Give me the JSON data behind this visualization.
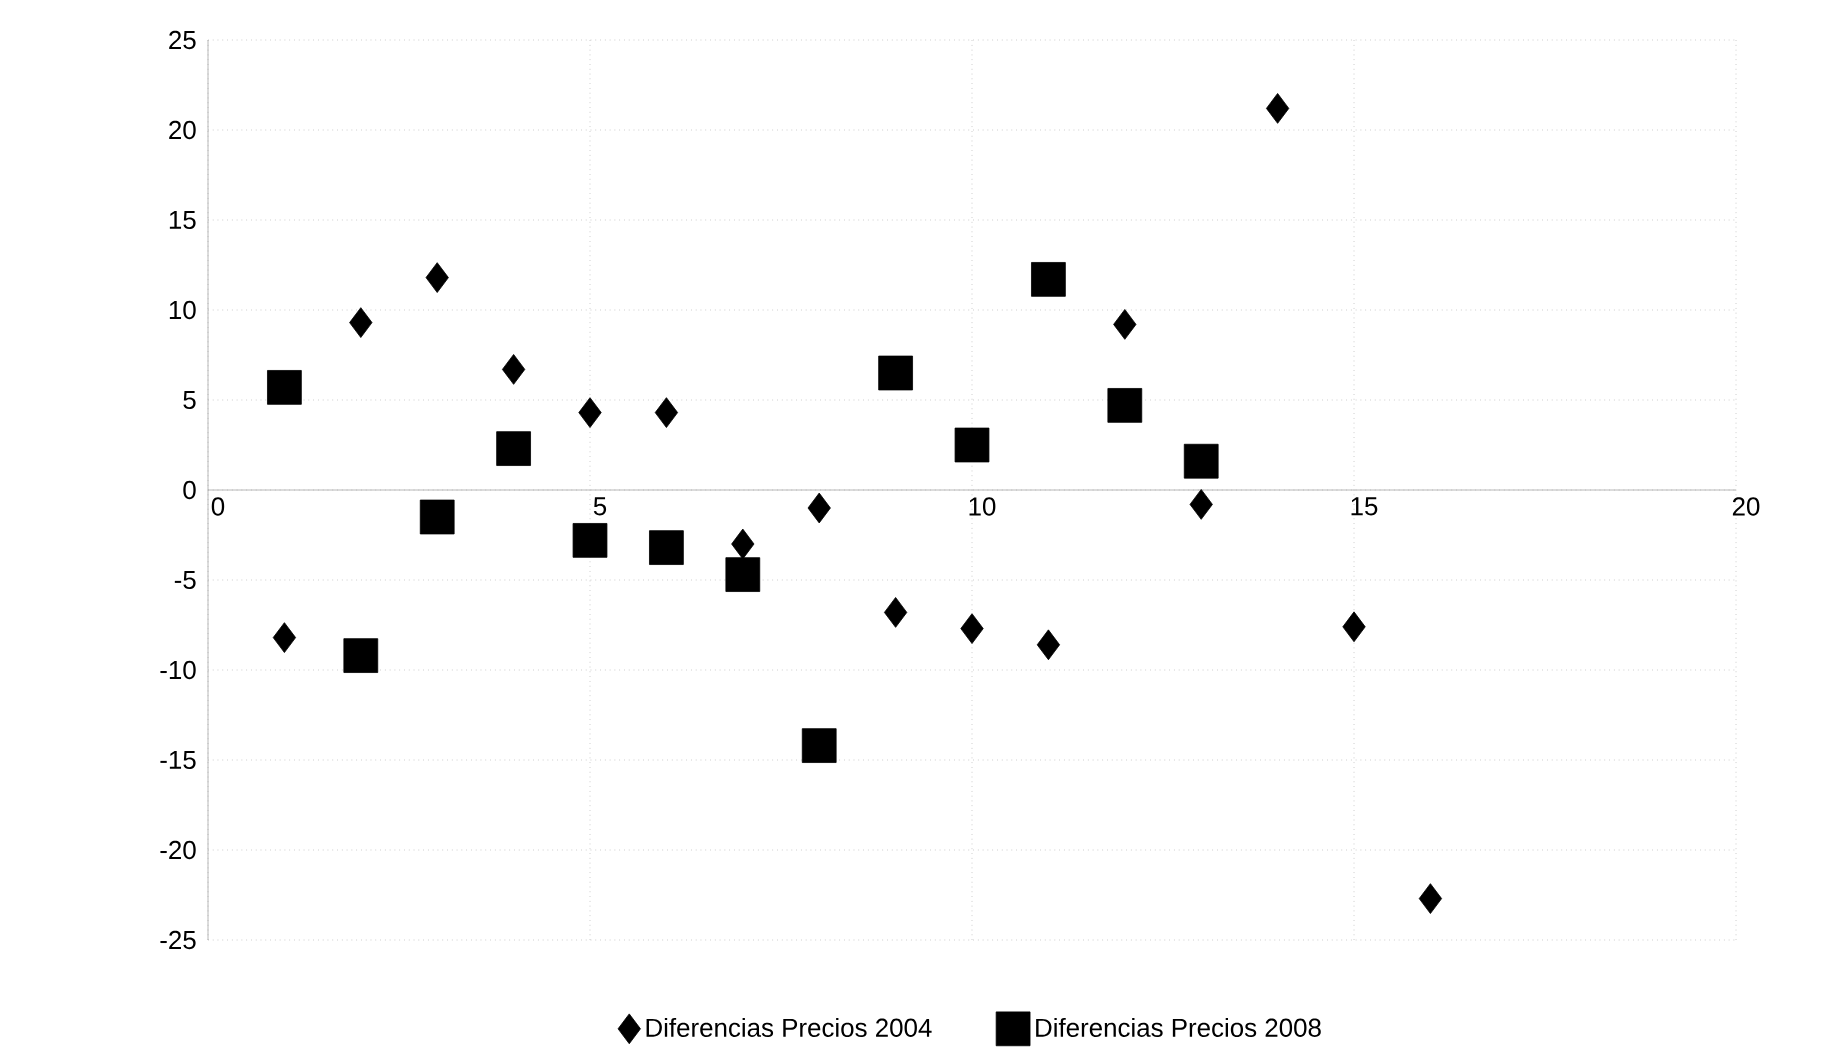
{
  "chart_data": {
    "type": "scatter",
    "x": [
      1,
      2,
      3,
      4,
      5,
      6,
      7,
      8,
      9,
      10,
      11,
      12,
      13,
      14,
      15,
      16
    ],
    "series": [
      {
        "name": "Diferencias Precios 2004",
        "color": "#000000",
        "marker": "diamond",
        "values": [
          -8.2,
          9.3,
          11.8,
          6.7,
          4.3,
          4.3,
          -3,
          -1,
          -6.8,
          -7.7,
          -8.6,
          9.2,
          -0.8,
          21.2,
          -7.6,
          -22.7
        ]
      },
      {
        "name": "Diferencias Precios 2008",
        "color": "#000000",
        "marker": "square",
        "x": [
          1,
          2,
          3,
          4,
          5,
          6,
          7,
          8,
          9,
          10,
          11,
          12,
          13
        ],
        "values": [
          5.7,
          -9.2,
          -1.5,
          2.3,
          -2.8,
          -3.2,
          -4.7,
          -14.2,
          6.5,
          2.5,
          11.7,
          4.7,
          1.6
        ]
      }
    ],
    "xlim": [
      0,
      20
    ],
    "ylim": [
      -25,
      25
    ],
    "xticks": [
      0,
      5,
      10,
      15,
      20
    ],
    "yticks": [
      -25,
      -20,
      -15,
      -10,
      -5,
      0,
      5,
      10,
      15,
      20,
      25
    ],
    "grid": true,
    "legend": "bottom"
  }
}
